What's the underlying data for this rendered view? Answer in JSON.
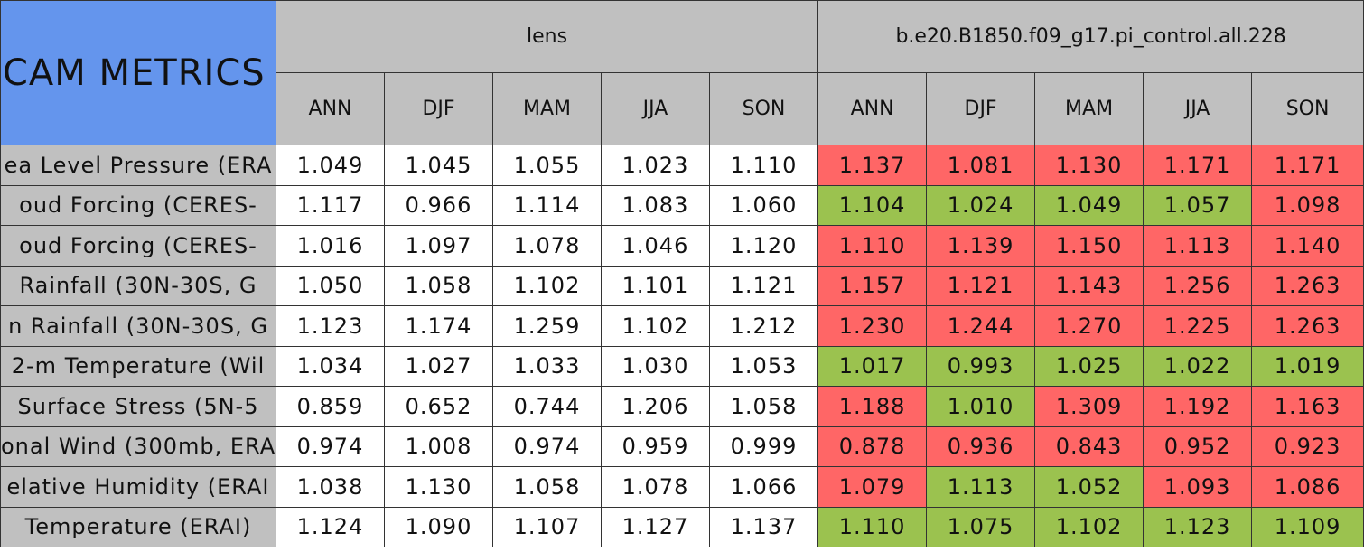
{
  "table": {
    "corner": "CAM METRICS",
    "groups": [
      "lens",
      "b.e20.B1850.f09_g17.pi_control.all.228"
    ],
    "seasons": [
      "ANN",
      "DJF",
      "MAM",
      "JJA",
      "SON"
    ],
    "rows": [
      {
        "label": "ea Level Pressure (ERA",
        "values": [
          "1.049",
          "1.045",
          "1.055",
          "1.023",
          "1.110",
          "1.137",
          "1.081",
          "1.130",
          "1.171",
          "1.171"
        ],
        "colors": [
          "#ffffff",
          "#ffffff",
          "#ffffff",
          "#ffffff",
          "#ffffff",
          "#ff6666",
          "#ff6666",
          "#ff6666",
          "#ff6666",
          "#ff6666"
        ]
      },
      {
        "label": "oud Forcing (CERES-",
        "values": [
          "1.117",
          "0.966",
          "1.114",
          "1.083",
          "1.060",
          "1.104",
          "1.024",
          "1.049",
          "1.057",
          "1.098"
        ],
        "colors": [
          "#ffffff",
          "#ffffff",
          "#ffffff",
          "#ffffff",
          "#ffffff",
          "#9bc24f",
          "#9bc24f",
          "#9bc24f",
          "#9bc24f",
          "#ff6666"
        ]
      },
      {
        "label": "oud Forcing (CERES-",
        "values": [
          "1.016",
          "1.097",
          "1.078",
          "1.046",
          "1.120",
          "1.110",
          "1.139",
          "1.150",
          "1.113",
          "1.140"
        ],
        "colors": [
          "#ffffff",
          "#ffffff",
          "#ffffff",
          "#ffffff",
          "#ffffff",
          "#ff6666",
          "#ff6666",
          "#ff6666",
          "#ff6666",
          "#ff6666"
        ]
      },
      {
        "label": "Rainfall (30N-30S, G",
        "values": [
          "1.050",
          "1.058",
          "1.102",
          "1.101",
          "1.121",
          "1.157",
          "1.121",
          "1.143",
          "1.256",
          "1.263"
        ],
        "colors": [
          "#ffffff",
          "#ffffff",
          "#ffffff",
          "#ffffff",
          "#ffffff",
          "#ff6666",
          "#ff6666",
          "#ff6666",
          "#ff6666",
          "#ff6666"
        ]
      },
      {
        "label": "n Rainfall (30N-30S, G",
        "values": [
          "1.123",
          "1.174",
          "1.259",
          "1.102",
          "1.212",
          "1.230",
          "1.244",
          "1.270",
          "1.225",
          "1.263"
        ],
        "colors": [
          "#ffffff",
          "#ffffff",
          "#ffffff",
          "#ffffff",
          "#ffffff",
          "#ff6666",
          "#ff6666",
          "#ff6666",
          "#ff6666",
          "#ff6666"
        ]
      },
      {
        "label": "2-m Temperature (Wil",
        "values": [
          "1.034",
          "1.027",
          "1.033",
          "1.030",
          "1.053",
          "1.017",
          "0.993",
          "1.025",
          "1.022",
          "1.019"
        ],
        "colors": [
          "#ffffff",
          "#ffffff",
          "#ffffff",
          "#ffffff",
          "#ffffff",
          "#9bc24f",
          "#9bc24f",
          "#9bc24f",
          "#9bc24f",
          "#9bc24f"
        ]
      },
      {
        "label": "Surface Stress (5N-5",
        "values": [
          "0.859",
          "0.652",
          "0.744",
          "1.206",
          "1.058",
          "1.188",
          "1.010",
          "1.309",
          "1.192",
          "1.163"
        ],
        "colors": [
          "#ffffff",
          "#ffffff",
          "#ffffff",
          "#ffffff",
          "#ffffff",
          "#ff6666",
          "#9bc24f",
          "#ff6666",
          "#ff6666",
          "#ff6666"
        ]
      },
      {
        "label": "onal Wind (300mb, ERA",
        "values": [
          "0.974",
          "1.008",
          "0.974",
          "0.959",
          "0.999",
          "0.878",
          "0.936",
          "0.843",
          "0.952",
          "0.923"
        ],
        "colors": [
          "#ffffff",
          "#ffffff",
          "#ffffff",
          "#ffffff",
          "#ffffff",
          "#ff6666",
          "#ff6666",
          "#ff6666",
          "#ff6666",
          "#ff6666"
        ]
      },
      {
        "label": "elative Humidity (ERAI",
        "values": [
          "1.038",
          "1.130",
          "1.058",
          "1.078",
          "1.066",
          "1.079",
          "1.113",
          "1.052",
          "1.093",
          "1.086"
        ],
        "colors": [
          "#ffffff",
          "#ffffff",
          "#ffffff",
          "#ffffff",
          "#ffffff",
          "#ff6666",
          "#9bc24f",
          "#9bc24f",
          "#ff6666",
          "#ff6666"
        ]
      },
      {
        "label": "Temperature (ERAI)",
        "values": [
          "1.124",
          "1.090",
          "1.107",
          "1.127",
          "1.137",
          "1.110",
          "1.075",
          "1.102",
          "1.123",
          "1.109"
        ],
        "colors": [
          "#ffffff",
          "#ffffff",
          "#ffffff",
          "#ffffff",
          "#ffffff",
          "#9bc24f",
          "#9bc24f",
          "#9bc24f",
          "#9bc24f",
          "#9bc24f"
        ]
      }
    ]
  }
}
